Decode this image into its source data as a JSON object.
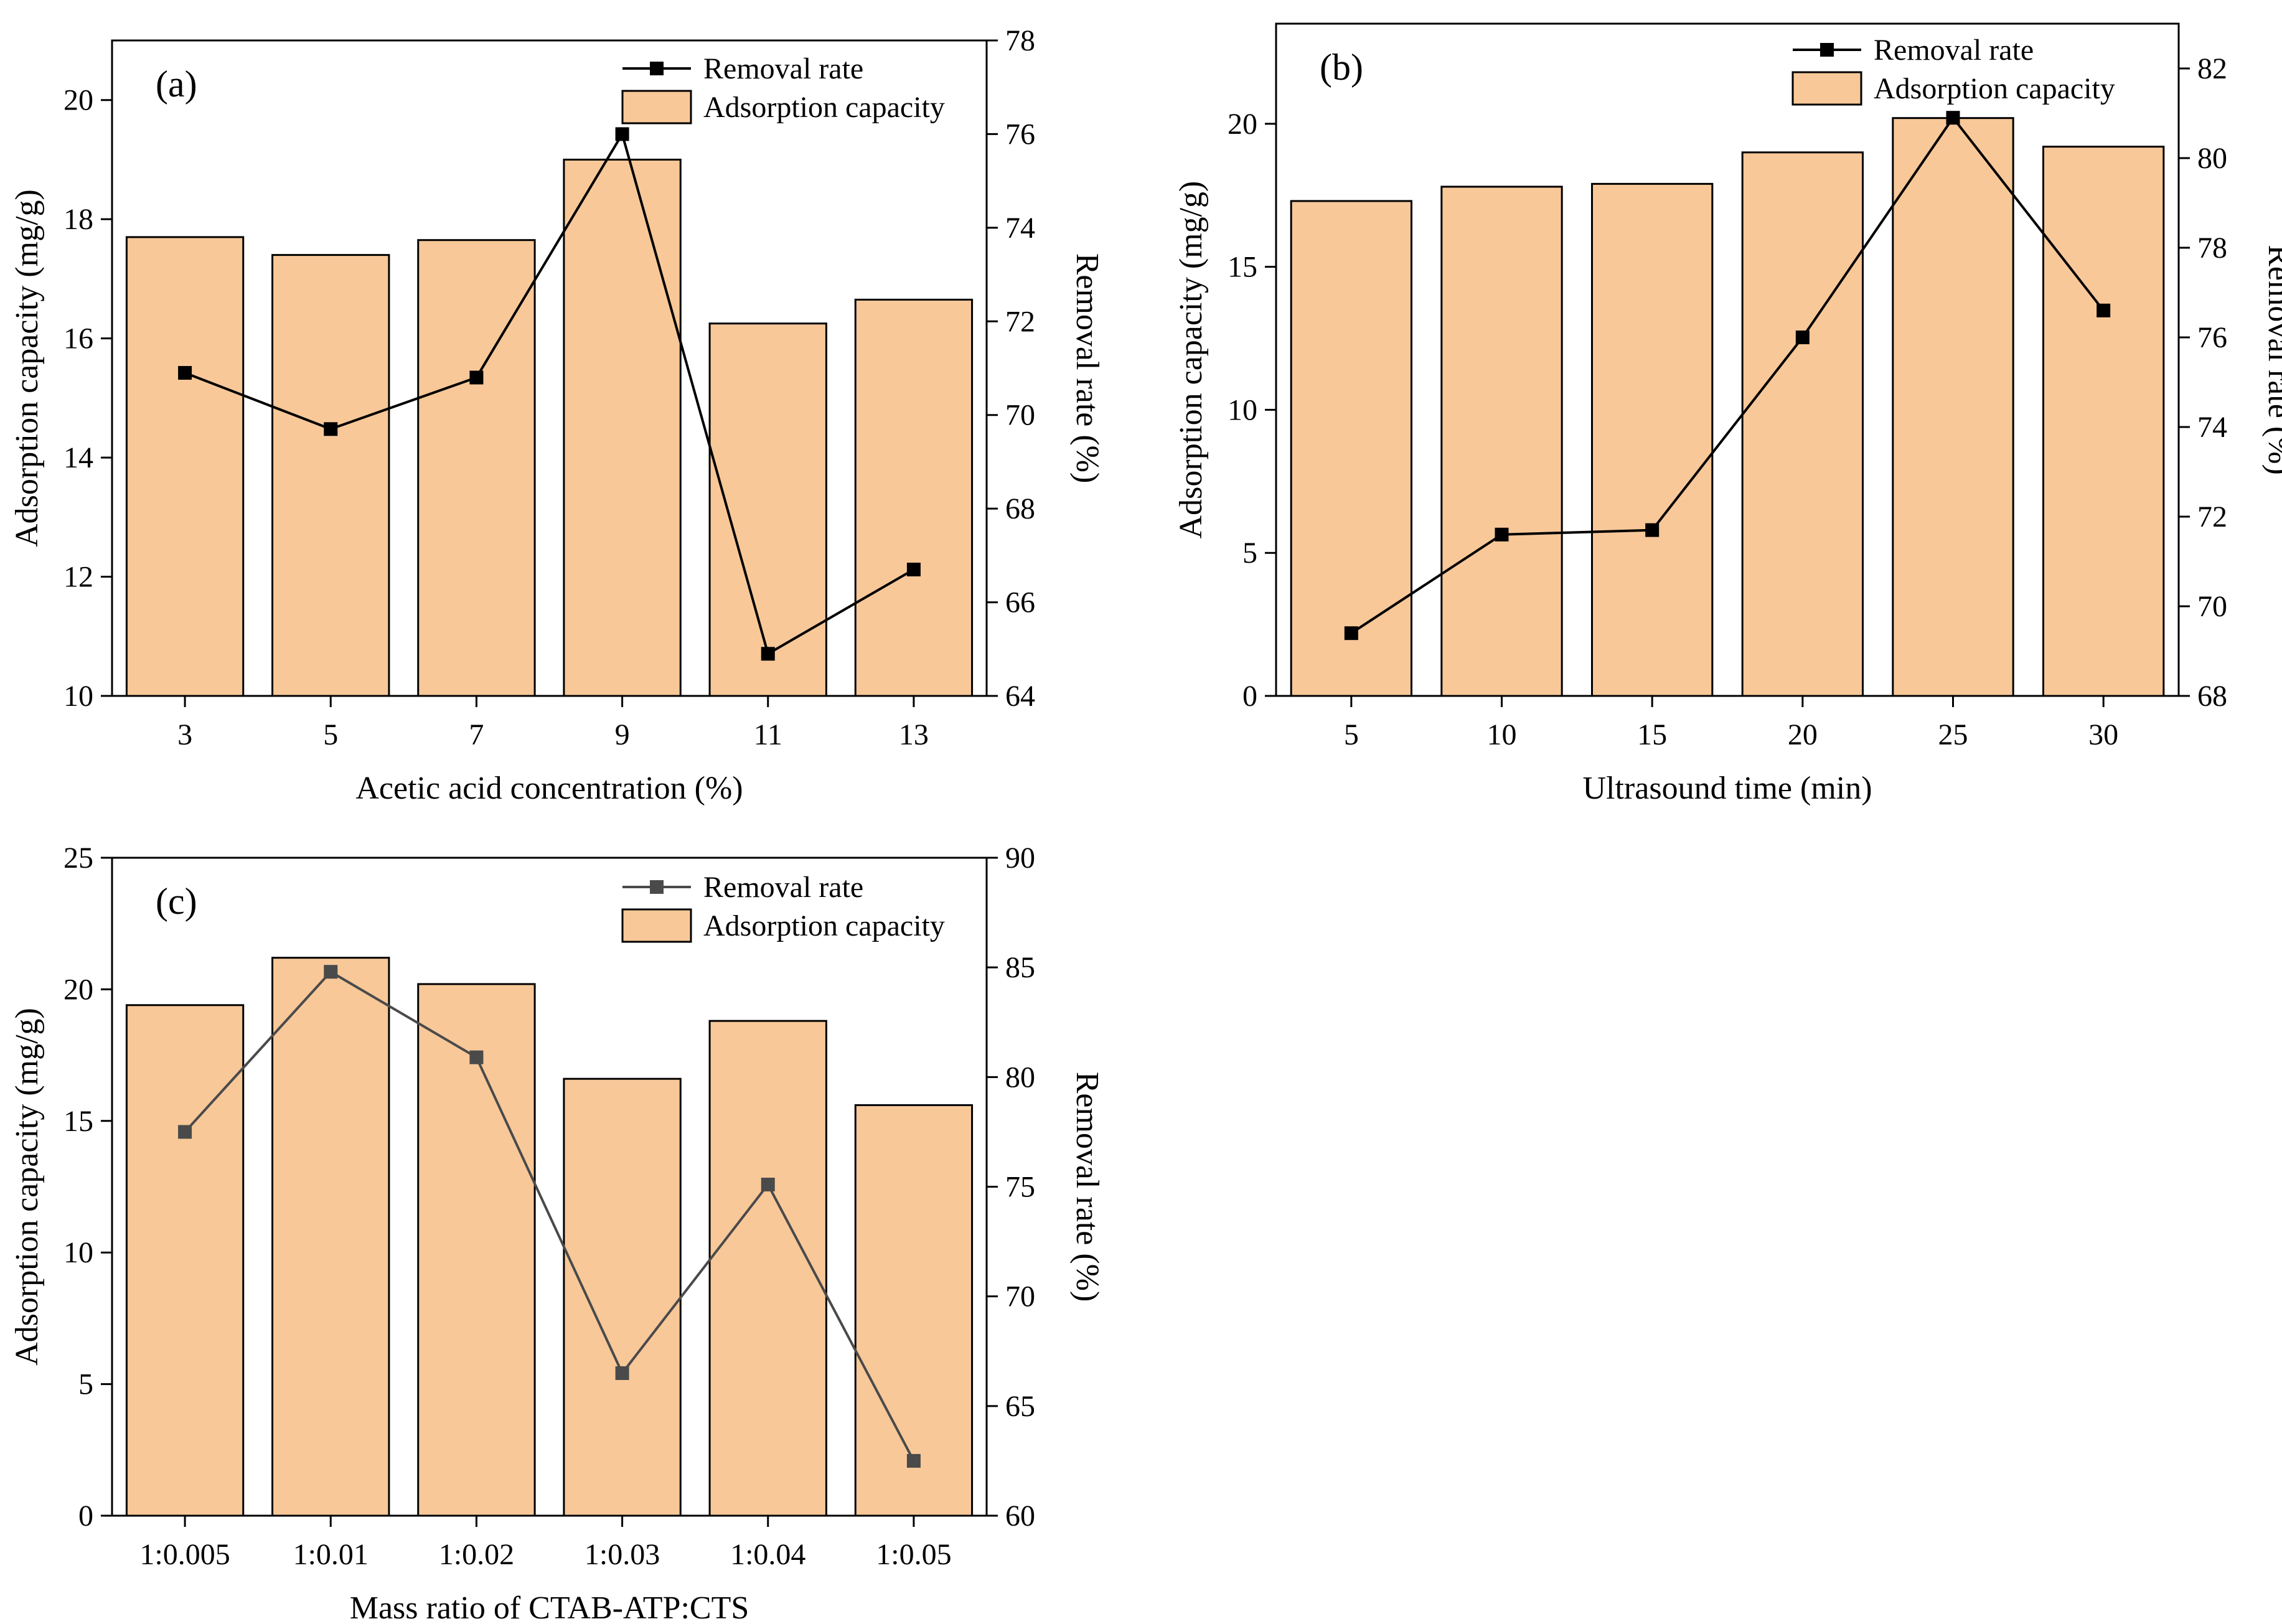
{
  "colors": {
    "bar_fill": "#f8c899",
    "bar_stroke": "#000000",
    "line_a": "#000000",
    "line_b": "#000000",
    "line_c": "#4a4a4a",
    "axis": "#000000"
  },
  "chart_data": [
    {
      "type": "bar",
      "panel_label": "(a)",
      "xlabel": "Acetic acid concentration (%)",
      "ylabel": "Adsorption capacity (mg/g)",
      "ylabel_right": "Removal rate (%)",
      "categories": [
        "3",
        "5",
        "7",
        "9",
        "11",
        "13"
      ],
      "ylim": [
        10,
        21
      ],
      "yticks": [
        "10",
        "12",
        "14",
        "16",
        "18",
        "20"
      ],
      "ylim_right": [
        64,
        78
      ],
      "yticks_right": [
        "64",
        "66",
        "68",
        "70",
        "72",
        "74",
        "76",
        "78"
      ],
      "legend": {
        "line": "Removal rate",
        "bar": "Adsorption capacity",
        "position": "top-right"
      },
      "series": [
        {
          "name": "Adsorption capacity",
          "kind": "bar",
          "axis": "left",
          "values": [
            17.7,
            17.4,
            17.65,
            19.0,
            16.25,
            16.65
          ]
        },
        {
          "name": "Removal rate",
          "kind": "line",
          "axis": "right",
          "marker": "square",
          "values": [
            70.9,
            69.7,
            70.8,
            76.0,
            64.9,
            66.7
          ]
        }
      ]
    },
    {
      "type": "bar",
      "panel_label": "(b)",
      "xlabel": "Ultrasound time (min)",
      "ylabel": "Adsorption capacity (mg/g)",
      "ylabel_right": "Removal rate (%)",
      "categories": [
        "5",
        "10",
        "15",
        "20",
        "25",
        "30"
      ],
      "ylim": [
        0,
        23.5
      ],
      "yticks": [
        "0",
        "5",
        "10",
        "15",
        "20"
      ],
      "ylim_right": [
        68,
        83
      ],
      "yticks_right": [
        "68",
        "70",
        "72",
        "74",
        "76",
        "78",
        "80",
        "82"
      ],
      "legend": {
        "line": "Removal rate",
        "bar": "Adsorption capacity",
        "position": "top-right"
      },
      "series": [
        {
          "name": "Adsorption capacity",
          "kind": "bar",
          "axis": "left",
          "values": [
            17.3,
            17.8,
            17.9,
            19.0,
            20.2,
            19.2
          ]
        },
        {
          "name": "Removal rate",
          "kind": "line",
          "axis": "right",
          "marker": "square",
          "values": [
            69.4,
            71.6,
            71.7,
            76.0,
            80.9,
            76.6
          ]
        }
      ]
    },
    {
      "type": "bar",
      "panel_label": "(c)",
      "xlabel": "Mass ratio of CTAB-ATP:CTS",
      "ylabel": "Adsorption capacity (mg/g)",
      "ylabel_right": "Removal rate (%)",
      "categories": [
        "1:0.005",
        "1:0.01",
        "1:0.02",
        "1:0.03",
        "1:0.04",
        "1:0.05"
      ],
      "ylim": [
        0,
        25
      ],
      "yticks": [
        "0",
        "5",
        "10",
        "15",
        "20",
        "25"
      ],
      "ylim_right": [
        60,
        90
      ],
      "yticks_right": [
        "60",
        "65",
        "70",
        "75",
        "80",
        "85",
        "90"
      ],
      "legend": {
        "line": "Removal rate",
        "bar": "Adsorption capacity",
        "position": "top-right"
      },
      "series": [
        {
          "name": "Adsorption capacity",
          "kind": "bar",
          "axis": "left",
          "values": [
            19.4,
            21.2,
            20.2,
            16.6,
            18.8,
            15.6
          ]
        },
        {
          "name": "Removal rate",
          "kind": "line",
          "axis": "right",
          "marker": "square",
          "values": [
            77.5,
            84.8,
            80.9,
            66.5,
            75.1,
            62.5
          ]
        }
      ]
    }
  ]
}
